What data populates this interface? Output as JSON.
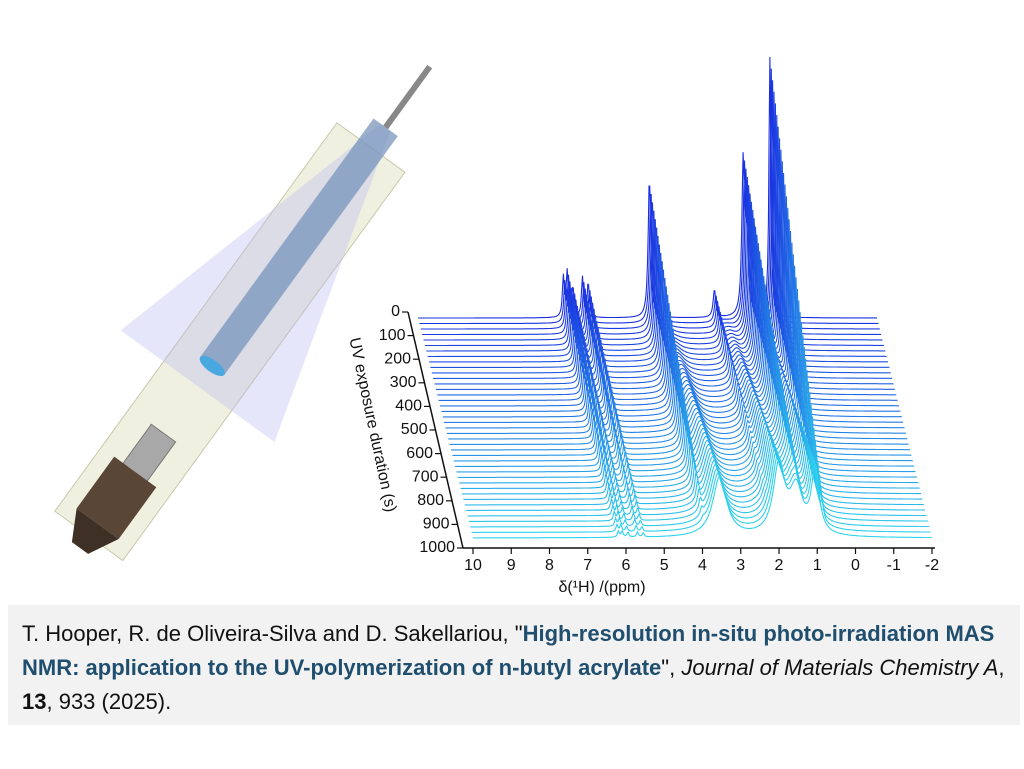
{
  "chart_data": {
    "type": "waterfall",
    "xlabel": "δ(¹H) /(ppm)",
    "ylabel": "UV exposure duration (s)",
    "xlim": [
      10,
      -2
    ],
    "xticks": [
      10,
      9,
      8,
      7,
      6,
      5,
      4,
      3,
      2,
      1,
      0,
      -1,
      -2
    ],
    "ylim": [
      0,
      1000
    ],
    "yticks": [
      0,
      100,
      200,
      300,
      400,
      500,
      600,
      700,
      800,
      900,
      1000
    ],
    "traces": [
      0,
      25,
      50,
      75,
      100,
      125,
      150,
      175,
      200,
      225,
      250,
      275,
      300,
      325,
      350,
      375,
      400,
      425,
      450,
      475,
      500,
      525,
      550,
      575,
      600,
      625,
      650,
      675,
      700,
      725,
      750,
      775,
      800,
      825,
      850,
      875,
      900,
      925,
      950,
      975,
      1000
    ],
    "peaks": [
      {
        "x": 6.2,
        "width": 0.03,
        "start": 40,
        "end": 6
      },
      {
        "x": 6.1,
        "width": 0.03,
        "start": 45,
        "end": 6
      },
      {
        "x": 5.95,
        "width": 0.03,
        "start": 30,
        "end": 5
      },
      {
        "x": 5.7,
        "width": 0.03,
        "start": 40,
        "end": 5
      },
      {
        "x": 5.55,
        "width": 0.03,
        "start": 35,
        "end": 4
      },
      {
        "x": 3.95,
        "width": 0.04,
        "start": 140,
        "end": 0
      },
      {
        "x": 2.25,
        "width": 0.04,
        "start": 28,
        "end": 0
      },
      {
        "x": 1.5,
        "width": 0.04,
        "start": 150,
        "end": 0
      },
      {
        "x": 1.4,
        "width": 0.04,
        "start": 110,
        "end": 0
      },
      {
        "x": 0.8,
        "width": 0.03,
        "start": 260,
        "end": 0
      },
      {
        "x": 3.55,
        "width": 0.22,
        "start": 0,
        "end": 60
      },
      {
        "x": 2.0,
        "width": 0.18,
        "start": 0,
        "end": 70
      },
      {
        "x": 1.55,
        "width": 0.2,
        "start": 0,
        "end": 45
      },
      {
        "x": 1.05,
        "width": 0.12,
        "start": 0,
        "end": 65
      }
    ],
    "colors": {
      "start": "#1a2fe0",
      "end": "#2fd3ee"
    }
  },
  "citation": {
    "authors": "T. Hooper, R. de Oliveira-Silva and D. Sakellariou, \"",
    "title": "High-resolution in-situ photo-irradiation MAS NMR: application to the UV-polymerization of n-butyl acrylate",
    "after_title": "\", ",
    "journal": "Journal of Materials Chemistry A",
    "sep": ", ",
    "volume": "13",
    "pages": ", 933 (2025)."
  }
}
